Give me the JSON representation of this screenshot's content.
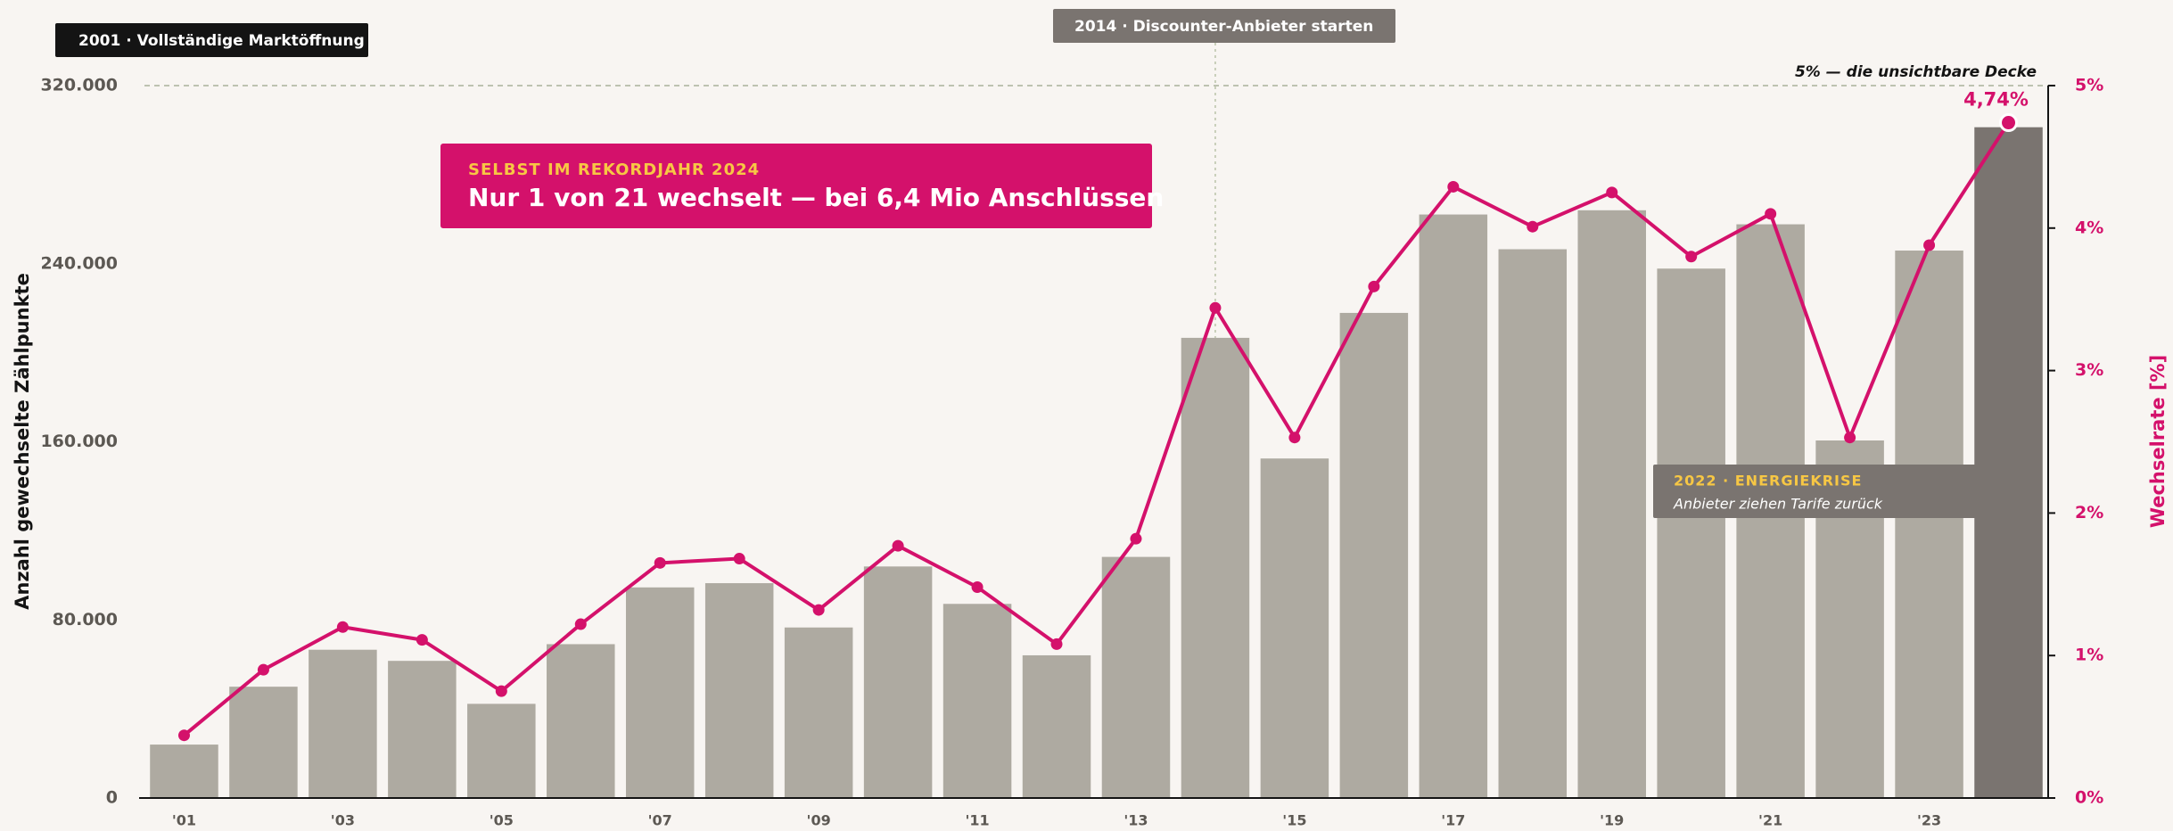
{
  "chart_data": {
    "type": "bar_line",
    "categories": [
      "'01",
      null,
      "'03",
      null,
      "'05",
      null,
      "'07",
      null,
      "'09",
      null,
      "'11",
      null,
      "'13",
      null,
      "'15",
      null,
      "'17",
      null,
      "'19",
      null,
      "'21",
      null,
      "'23",
      null
    ],
    "series": [
      {
        "name": "Anzahl gewechselte Zählpunkte",
        "type": "bar",
        "axis": "y",
        "colors": [
          "#aeaaa1",
          "#aeaaa1",
          "#aeaaa1",
          "#aeaaa1",
          "#aeaaa1",
          "#aeaaa1",
          "#aeaaa1",
          "#aeaaa1",
          "#aeaaa1",
          "#aeaaa1",
          "#aeaaa1",
          "#aeaaa1",
          "#aeaaa1",
          "#aeaaa1",
          "#aeaaa1",
          "#aeaaa1",
          "#aeaaa1",
          "#aeaaa1",
          "#aeaaa1",
          "#aeaaa1",
          "#aeaaa1",
          "#aeaaa1",
          "#aeaaa1",
          "#7a7470"
        ],
        "values": [
          24000,
          50000,
          66600,
          61600,
          42300,
          69100,
          94600,
          96500,
          76600,
          104000,
          87200,
          64100,
          108300,
          206700,
          152500,
          217900,
          262100,
          246500,
          264000,
          237800,
          257700,
          160600,
          245900,
          301300
        ]
      },
      {
        "name": "Wechselrate [%]",
        "type": "line",
        "axis": "y2",
        "color": "#d4116b",
        "values": [
          0.44,
          0.9,
          1.2,
          1.11,
          0.75,
          1.22,
          1.65,
          1.68,
          1.32,
          1.77,
          1.48,
          1.08,
          1.82,
          3.44,
          2.53,
          3.59,
          4.29,
          4.01,
          4.25,
          3.8,
          4.1,
          2.53,
          3.88,
          4.74
        ],
        "value_labels": [
          null,
          null,
          null,
          null,
          null,
          null,
          null,
          null,
          null,
          null,
          null,
          null,
          null,
          null,
          null,
          null,
          null,
          null,
          null,
          null,
          null,
          null,
          null,
          "4,74%"
        ]
      }
    ],
    "y_label": "Anzahl gewechselte Zählpunkte",
    "y2_label": "Wechselrate [%]",
    "ylim": [
      0,
      320000
    ],
    "yticks": [
      {
        "value": 0,
        "label": "0"
      },
      {
        "value": 80000,
        "label": "80.000"
      },
      {
        "value": 160000,
        "label": "160.000"
      },
      {
        "value": 240000,
        "label": "240.000"
      },
      {
        "value": 320000,
        "label": "320.000"
      }
    ],
    "y2lim": [
      0,
      5
    ],
    "y2ticks": [
      {
        "value": 0,
        "label": "0%"
      },
      {
        "value": 1,
        "label": "1%"
      },
      {
        "value": 2,
        "label": "2%"
      },
      {
        "value": 3,
        "label": "3%"
      },
      {
        "value": 4,
        "label": "4%"
      },
      {
        "value": 5,
        "label": "5%"
      }
    ],
    "grid": true,
    "annotations": {
      "market_opening": "2001 · Vollständige Marktöffnung",
      "discounter": "2014 · Discounter-Anbieter starten",
      "ceiling": "5% — die unsichtbare Decke",
      "callout": {
        "kicker": "SELBST IM REKORDJAHR 2024",
        "headline": "Nur 1 von 21 wechselt — bei 6,4 Mio Anschlüssen"
      },
      "energy_crisis": {
        "title": "2022 · ENERGIEKRISE",
        "text": "Anbieter ziehen Tarife zurück"
      }
    }
  }
}
